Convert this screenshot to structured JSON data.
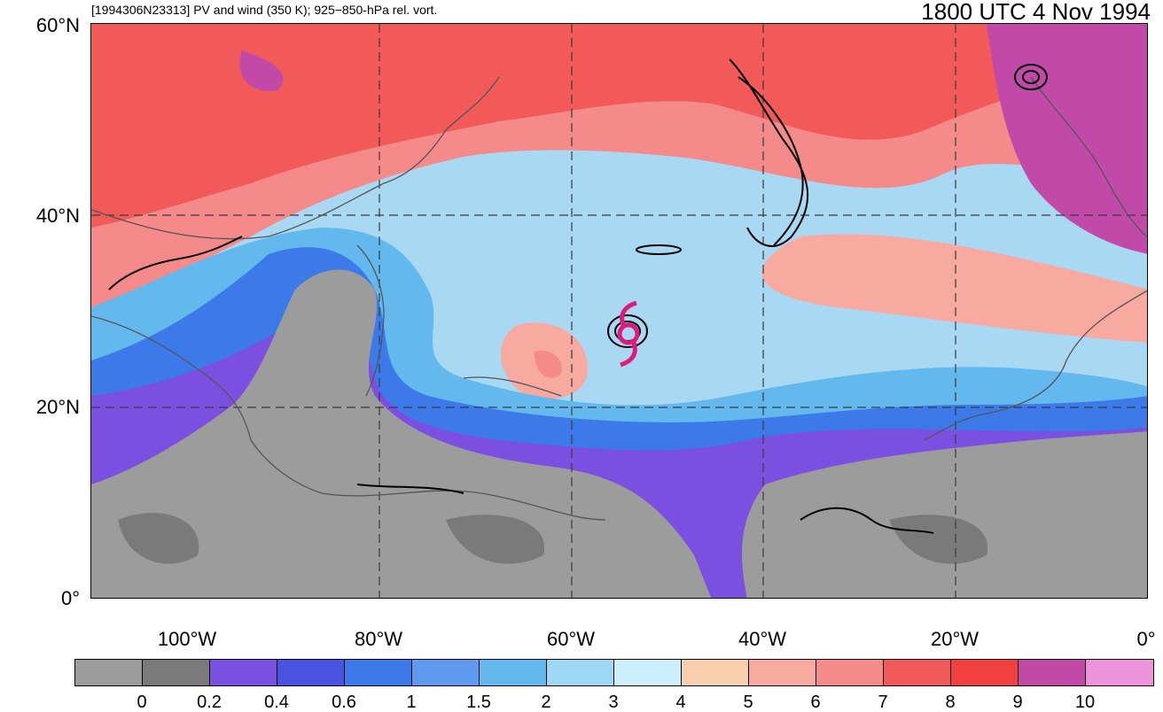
{
  "header": {
    "left_title": "[1994306N23313] PV and wind (350 K); 925−850-hPa rel. vort.",
    "right_title": "1800 UTC 4 Nov 1994"
  },
  "map": {
    "lat_labels": [
      "60°N",
      "40°N",
      "20°N",
      "0°"
    ],
    "lon_labels": [
      "100°W",
      "80°W",
      "60°W",
      "40°W",
      "20°W",
      "0°"
    ],
    "extent": {
      "lon_min": -110,
      "lon_max": 0,
      "lat_min": 0,
      "lat_max": 60
    },
    "storm_marker_color": "#e0197d",
    "vorticity_contour_color": "#000000",
    "coastline_color": "#555555",
    "gridline_style": "dashed"
  },
  "colorbar": {
    "labels": [
      "0",
      "0.2",
      "0.4",
      "0.6",
      "1",
      "1.5",
      "2",
      "3",
      "4",
      "5",
      "6",
      "7",
      "8",
      "9",
      "10"
    ],
    "colors": [
      "#9c9c9c",
      "#7a7a7a",
      "#7b4fe0",
      "#4a52e2",
      "#3b7ae8",
      "#5f9af0",
      "#63b8ee",
      "#9fd8f6",
      "#cdeefc",
      "#f9cfae",
      "#f8a9a0",
      "#f58a8a",
      "#f25a5a",
      "#f23f3f",
      "#c14aa8",
      "#ee92dc"
    ]
  }
}
